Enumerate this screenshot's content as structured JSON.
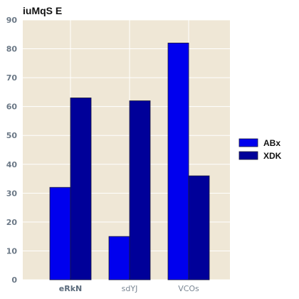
{
  "chart_data": {
    "type": "bar",
    "title": "iuMqS E",
    "categories": [
      "eRkN",
      "sdYJ",
      "VCOs"
    ],
    "series": [
      {
        "name": "ABx",
        "values": [
          32,
          15,
          82
        ],
        "color": "#0000ee"
      },
      {
        "name": "XDK",
        "values": [
          63,
          62,
          36
        ],
        "color": "#000099"
      }
    ],
    "ylim": [
      0,
      90
    ],
    "yticks": [
      "0",
      "10",
      "20",
      "30",
      "40",
      "50",
      "60",
      "70",
      "80",
      "90"
    ],
    "grid": true,
    "legend_position": "right",
    "colors": {
      "plot_background": "#efe7d6",
      "grid": "#ffffff",
      "bar_edge": "#1a1a3a"
    },
    "xtick_style": [
      "bold",
      "normal",
      "normal"
    ]
  }
}
